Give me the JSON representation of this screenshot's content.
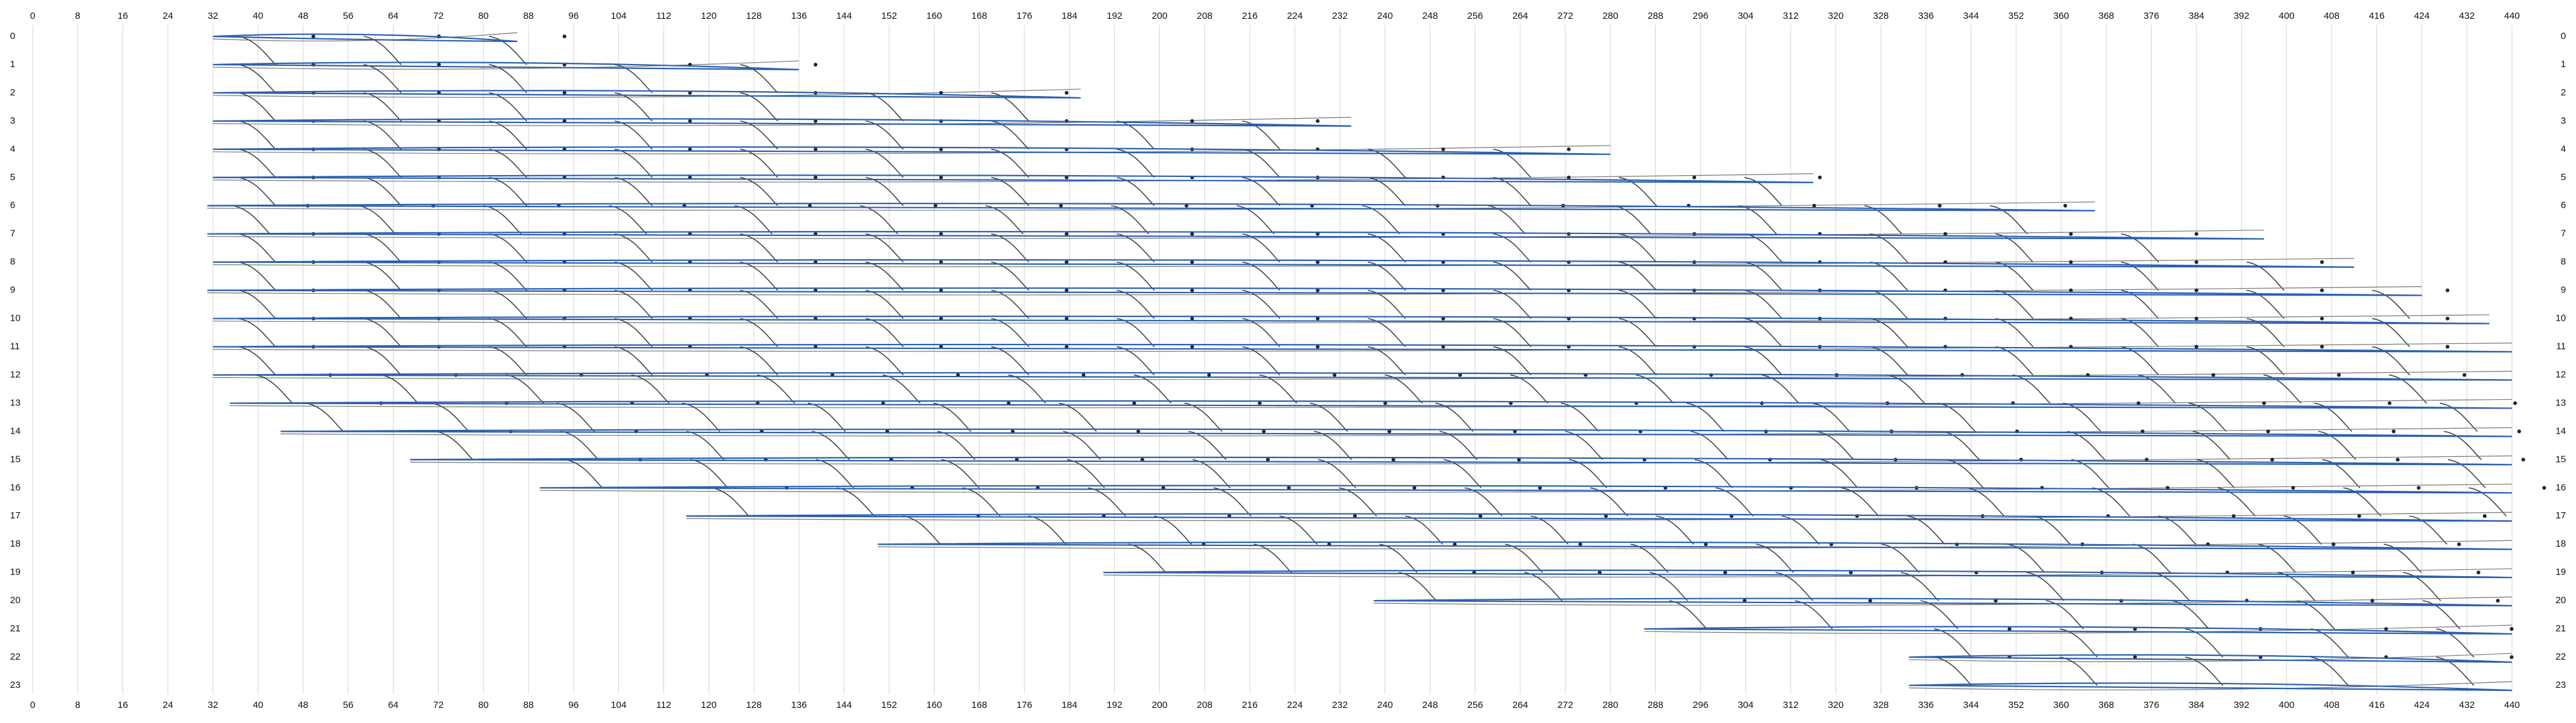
{
  "chart_data": {
    "type": "range",
    "xlim": [
      0,
      440
    ],
    "xticks": [
      0,
      8,
      16,
      24,
      32,
      40,
      48,
      56,
      64,
      72,
      80,
      88,
      96,
      104,
      112,
      120,
      128,
      136,
      144,
      152,
      160,
      168,
      176,
      184,
      192,
      200,
      208,
      216,
      224,
      232,
      240,
      248,
      256,
      264,
      272,
      280,
      288,
      296,
      304,
      312,
      320,
      328,
      336,
      344,
      352,
      360,
      368,
      376,
      384,
      392,
      400,
      408,
      416,
      424,
      432,
      440
    ],
    "ylim": [
      0,
      23
    ],
    "yticks": [
      0,
      1,
      2,
      3,
      4,
      5,
      6,
      7,
      8,
      9,
      10,
      11,
      12,
      13,
      14,
      15,
      16,
      17,
      18,
      19,
      20,
      21,
      22,
      23
    ],
    "start": [
      32,
      32,
      32,
      32,
      32,
      32,
      31,
      31,
      32,
      31,
      32,
      32,
      32,
      35,
      44,
      67,
      90,
      116,
      150,
      190,
      238,
      286,
      333,
      333
    ],
    "end": [
      86,
      136,
      186,
      234,
      280,
      316,
      366,
      396,
      412,
      424,
      436,
      440,
      440,
      440,
      440,
      440,
      440,
      440,
      440,
      440,
      440,
      440,
      440,
      440
    ],
    "color": "#2b5fb0",
    "grid": true
  }
}
